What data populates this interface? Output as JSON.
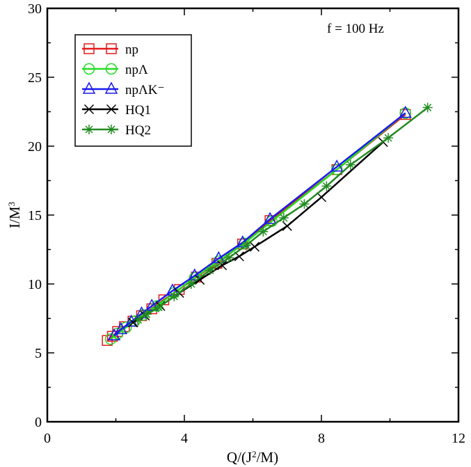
{
  "chart_data": {
    "type": "line",
    "title": "",
    "annotation": "f = 100 Hz",
    "xlabel": "Q/(J²/M)",
    "ylabel": "I/M³",
    "xlim": [
      0,
      12
    ],
    "ylim": [
      0,
      30
    ],
    "xticks": [
      0,
      4,
      8,
      12
    ],
    "yticks": [
      0,
      5,
      10,
      15,
      20,
      25,
      30
    ],
    "xtick_labels": [
      "0",
      "4",
      "8",
      "12"
    ],
    "ytick_labels": [
      "0",
      "5",
      "10",
      "15",
      "20",
      "25",
      "30"
    ],
    "legend_position": "top-left",
    "series": [
      {
        "name": "np",
        "color": "#e41a1c",
        "marker": "square",
        "points": [
          [
            1.75,
            5.9
          ],
          [
            1.9,
            6.2
          ],
          [
            2.05,
            6.55
          ],
          [
            2.25,
            6.9
          ],
          [
            2.5,
            7.3
          ],
          [
            2.75,
            7.7
          ],
          [
            3.05,
            8.2
          ],
          [
            3.4,
            8.85
          ],
          [
            3.85,
            9.6
          ],
          [
            4.35,
            10.5
          ],
          [
            4.95,
            11.5
          ],
          [
            5.7,
            12.9
          ],
          [
            6.5,
            14.6
          ],
          [
            8.45,
            18.3
          ],
          [
            10.45,
            22.3
          ]
        ]
      },
      {
        "name": "npΛ",
        "color": "#22dd22",
        "marker": "circle",
        "points": [
          [
            1.85,
            6.0
          ],
          [
            2.05,
            6.4
          ],
          [
            2.3,
            6.85
          ],
          [
            2.55,
            7.3
          ],
          [
            2.8,
            7.75
          ],
          [
            3.2,
            8.4
          ],
          [
            3.7,
            9.35
          ],
          [
            4.3,
            10.45
          ],
          [
            5.0,
            11.65
          ],
          [
            5.75,
            12.95
          ],
          [
            6.55,
            14.55
          ],
          [
            8.45,
            18.3
          ],
          [
            10.45,
            22.4
          ]
        ]
      },
      {
        "name": "npΛK⁻",
        "color": "#1a1aee",
        "marker": "triangle",
        "points": [
          [
            1.95,
            6.25
          ],
          [
            2.15,
            6.7
          ],
          [
            2.45,
            7.25
          ],
          [
            2.75,
            7.85
          ],
          [
            3.05,
            8.4
          ],
          [
            3.65,
            9.5
          ],
          [
            4.3,
            10.6
          ],
          [
            5.0,
            11.85
          ],
          [
            5.7,
            13.0
          ],
          [
            6.5,
            14.7
          ],
          [
            8.45,
            18.5
          ],
          [
            10.45,
            22.4
          ]
        ]
      },
      {
        "name": "HQ1",
        "color": "#000000",
        "marker": "x",
        "points": [
          [
            2.5,
            7.2
          ],
          [
            2.85,
            7.7
          ],
          [
            3.3,
            8.4
          ],
          [
            3.85,
            9.35
          ],
          [
            4.45,
            10.3
          ],
          [
            5.1,
            11.35
          ],
          [
            5.6,
            12.0
          ],
          [
            6.05,
            12.7
          ],
          [
            7.0,
            14.2
          ],
          [
            8.0,
            16.3
          ],
          [
            9.8,
            20.3
          ]
        ]
      },
      {
        "name": "HQ2",
        "color": "#228b22",
        "marker": "star",
        "points": [
          [
            2.65,
            7.4
          ],
          [
            2.9,
            7.8
          ],
          [
            3.25,
            8.3
          ],
          [
            3.7,
            9.1
          ],
          [
            4.2,
            10.0
          ],
          [
            4.75,
            11.0
          ],
          [
            5.3,
            11.9
          ],
          [
            5.8,
            12.8
          ],
          [
            6.3,
            13.8
          ],
          [
            6.9,
            14.8
          ],
          [
            7.5,
            15.8
          ],
          [
            8.15,
            17.1
          ],
          [
            8.85,
            18.65
          ],
          [
            9.95,
            20.6
          ],
          [
            11.1,
            22.8
          ]
        ]
      }
    ]
  }
}
